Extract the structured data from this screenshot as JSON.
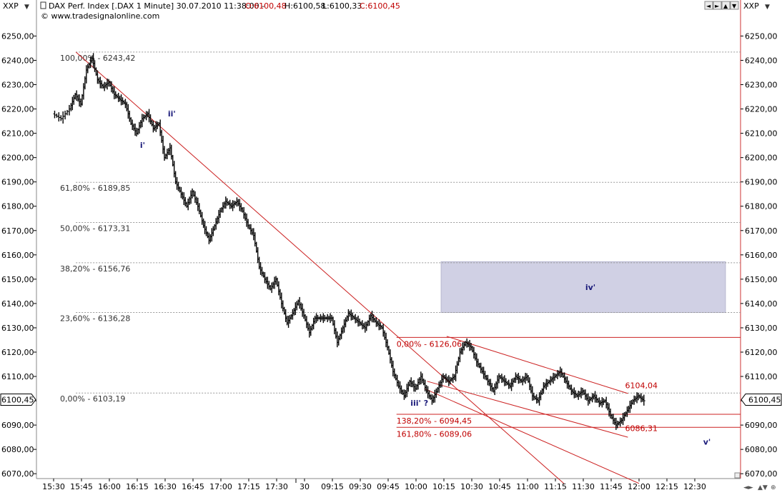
{
  "header": {
    "symbol_left": "XXP",
    "symbol_right": "XXP",
    "instrument": "DAX Perf. Index [.DAX  1 Minute] 30.07.2010 11:38:00 -",
    "ohlc": {
      "open": "O:6100,48",
      "high": "H:6100,58",
      "low": "L:6100,33",
      "close": "C:6100,45"
    },
    "copyright": "© www.tradesignalonline.com",
    "window_buttons": [
      "◄",
      "►",
      "▲",
      "▼"
    ]
  },
  "chart_data": {
    "type": "candlestick",
    "x_categories": [
      "15:30",
      "15:45",
      "16:00",
      "16:15",
      "16:30",
      "16:45",
      "17:00",
      "17:15",
      "17:30",
      "30",
      "09:15",
      "09:30",
      "09:45",
      "10:00",
      "10:15",
      "10:30",
      "10:45",
      "11:00",
      "11:15",
      "11:30",
      "11:45",
      "12:00",
      "12:15",
      "12:30"
    ],
    "ylim": [
      6068,
      6256
    ],
    "y_ticks": [
      6070,
      6080,
      6090,
      6100,
      6110,
      6120,
      6130,
      6140,
      6150,
      6160,
      6170,
      6180,
      6190,
      6200,
      6210,
      6220,
      6230,
      6240,
      6250
    ],
    "y_tick_labels": [
      "6070,00",
      "6080,00",
      "6090,00",
      "6100,00",
      "6110,00",
      "6120,00",
      "6130,00",
      "6140,00",
      "6150,00",
      "6160,00",
      "6170,00",
      "6180,00",
      "6190,00",
      "6200,00",
      "6210,00",
      "6220,00",
      "6230,00",
      "6240,00",
      "6250,00"
    ],
    "current_price": "6100,45",
    "price_path": [
      [
        0,
        6218
      ],
      [
        0.3,
        6216
      ],
      [
        0.6,
        6220
      ],
      [
        0.8,
        6226
      ],
      [
        1.0,
        6222
      ],
      [
        1.2,
        6236
      ],
      [
        1.4,
        6241
      ],
      [
        1.6,
        6232
      ],
      [
        1.8,
        6229
      ],
      [
        2.0,
        6231
      ],
      [
        2.2,
        6226
      ],
      [
        2.4,
        6224
      ],
      [
        2.6,
        6222
      ],
      [
        2.8,
        6214
      ],
      [
        3.0,
        6210
      ],
      [
        3.2,
        6216
      ],
      [
        3.4,
        6218
      ],
      [
        3.6,
        6212
      ],
      [
        3.8,
        6214
      ],
      [
        4.0,
        6200
      ],
      [
        4.2,
        6204
      ],
      [
        4.4,
        6190
      ],
      [
        4.6,
        6185
      ],
      [
        4.8,
        6180
      ],
      [
        5.0,
        6186
      ],
      [
        5.2,
        6180
      ],
      [
        5.4,
        6172
      ],
      [
        5.6,
        6166
      ],
      [
        5.8,
        6172
      ],
      [
        6.0,
        6178
      ],
      [
        6.2,
        6182
      ],
      [
        6.4,
        6180
      ],
      [
        6.6,
        6182
      ],
      [
        6.8,
        6178
      ],
      [
        7.0,
        6172
      ],
      [
        7.2,
        6168
      ],
      [
        7.4,
        6155
      ],
      [
        7.6,
        6150
      ],
      [
        7.8,
        6146
      ],
      [
        8.0,
        6150
      ],
      [
        8.2,
        6140
      ],
      [
        8.4,
        6132
      ],
      [
        8.6,
        6136
      ],
      [
        8.8,
        6141
      ],
      [
        9.0,
        6135
      ],
      [
        9.2,
        6128
      ],
      [
        9.4,
        6134
      ],
      [
        9.6,
        6134
      ],
      [
        9.8,
        6134
      ],
      [
        10.0,
        6134
      ],
      [
        10.2,
        6124
      ],
      [
        10.4,
        6130
      ],
      [
        10.6,
        6136
      ],
      [
        10.8,
        6134
      ],
      [
        11.0,
        6132
      ],
      [
        11.2,
        6130
      ],
      [
        11.4,
        6135
      ],
      [
        11.6,
        6132
      ],
      [
        11.8,
        6130
      ],
      [
        12.0,
        6122
      ],
      [
        12.2,
        6112
      ],
      [
        12.4,
        6106
      ],
      [
        12.6,
        6102
      ],
      [
        12.8,
        6108
      ],
      [
        13.0,
        6105
      ],
      [
        13.2,
        6110
      ],
      [
        13.4,
        6104
      ],
      [
        13.6,
        6100
      ],
      [
        13.8,
        6105
      ],
      [
        14.0,
        6110
      ],
      [
        14.2,
        6108
      ],
      [
        14.4,
        6110
      ],
      [
        14.6,
        6120
      ],
      [
        14.8,
        6124
      ],
      [
        15.0,
        6122
      ],
      [
        15.2,
        6116
      ],
      [
        15.4,
        6112
      ],
      [
        15.6,
        6108
      ],
      [
        15.8,
        6104
      ],
      [
        16.0,
        6110
      ],
      [
        16.2,
        6108
      ],
      [
        16.4,
        6106
      ],
      [
        16.6,
        6110
      ],
      [
        16.8,
        6108
      ],
      [
        17.0,
        6110
      ],
      [
        17.2,
        6102
      ],
      [
        17.4,
        6100
      ],
      [
        17.6,
        6106
      ],
      [
        17.8,
        6108
      ],
      [
        18.0,
        6110
      ],
      [
        18.2,
        6112
      ],
      [
        18.4,
        6108
      ],
      [
        18.6,
        6104
      ],
      [
        18.8,
        6102
      ],
      [
        19.0,
        6104
      ],
      [
        19.2,
        6100
      ],
      [
        19.4,
        6102
      ],
      [
        19.6,
        6099
      ],
      [
        19.8,
        6100
      ],
      [
        20.0,
        6094
      ],
      [
        20.2,
        6090
      ],
      [
        20.4,
        6092
      ],
      [
        20.6,
        6096
      ],
      [
        20.8,
        6100
      ],
      [
        21.0,
        6102
      ],
      [
        21.2,
        6100
      ]
    ],
    "retracements": [
      {
        "label": "100,00% - 6243,42",
        "value": 6243.42
      },
      {
        "label": "61,80% - 6189,85",
        "value": 6189.85
      },
      {
        "label": "50,00% - 6173,31",
        "value": 6173.31
      },
      {
        "label": "38,20% - 6156,76",
        "value": 6156.76
      },
      {
        "label": "23,60% - 6136,28",
        "value": 6136.28
      },
      {
        "label": "0,00% - 6103,19",
        "value": 6103.19
      }
    ],
    "extensions": [
      {
        "label": "0,00% - 6126,06",
        "value": 6126.06
      },
      {
        "label": "138,20% - 6094,45",
        "value": 6094.45
      },
      {
        "label": "161,80% - 6089,06",
        "value": 6089.06
      }
    ],
    "target_zone": {
      "x_from": 13.9,
      "x_to": 24.1,
      "y_from": 6136.28,
      "y_to": 6157.2,
      "label": "iv'"
    },
    "trendlines": [
      {
        "from": [
          0.8,
          6243.4
        ],
        "to": [
          18.3,
          6066
        ]
      },
      {
        "from": [
          14.1,
          6126.5
        ],
        "to": [
          20.6,
          6103
        ]
      },
      {
        "from": [
          13.4,
          6108
        ],
        "to": [
          20.6,
          6085
        ]
      },
      {
        "from": [
          13.3,
          6105
        ],
        "to": [
          21.0,
          6066
        ]
      }
    ],
    "price_tags": [
      {
        "label": "6104,04",
        "x": 20.5,
        "value": 6104.04
      },
      {
        "label": "6086,31",
        "x": 20.5,
        "value": 6086.31
      }
    ],
    "wave_labels": [
      {
        "label": "i'",
        "x": 3.1,
        "value": 6204
      },
      {
        "label": "ii'",
        "x": 4.1,
        "value": 6217
      },
      {
        "label": "iii' ?",
        "x": 12.8,
        "value": 6098
      },
      {
        "label": "v'",
        "x": 23.3,
        "value": 6082
      }
    ]
  }
}
